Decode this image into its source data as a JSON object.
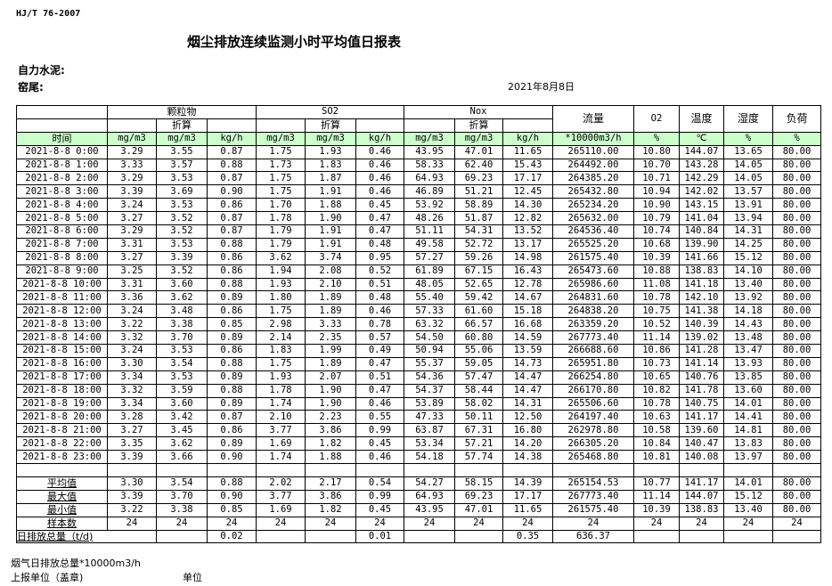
{
  "standard": "HJ/T  76-2007",
  "title": "烟尘排放连续监测小时平均值日报表",
  "company": "自力水泥:",
  "kiln": "窑尾:",
  "date": "2021年8月8日",
  "header": {
    "particulate": "颗粒物",
    "so2": "SO2",
    "nox": "Nox",
    "converted": "折算",
    "flow": "流量",
    "o2": "O2",
    "temperature": "温度",
    "humidity": "湿度",
    "load": "负荷",
    "time": "时间",
    "units": [
      "mg/m3",
      "mg/m3",
      "kg/h",
      "mg/m3",
      "mg/m3",
      "kg/h",
      "mg/m3",
      "mg/m3",
      "kg/h",
      "*10000m3/h",
      "%",
      "℃",
      "%",
      "%"
    ]
  },
  "rows": [
    [
      "2021-8-8 0:00",
      "3.29",
      "3.55",
      "0.87",
      "1.75",
      "1.93",
      "0.46",
      "43.95",
      "47.01",
      "11.65",
      "265110.00",
      "10.80",
      "144.07",
      "13.65",
      "80.00"
    ],
    [
      "2021-8-8 1:00",
      "3.33",
      "3.57",
      "0.88",
      "1.73",
      "1.83",
      "0.46",
      "58.33",
      "62.40",
      "15.43",
      "264492.00",
      "10.70",
      "143.28",
      "14.05",
      "80.00"
    ],
    [
      "2021-8-8 2:00",
      "3.29",
      "3.53",
      "0.87",
      "1.75",
      "1.87",
      "0.46",
      "64.93",
      "69.23",
      "17.17",
      "264385.20",
      "10.71",
      "142.29",
      "14.05",
      "80.00"
    ],
    [
      "2021-8-8 3:00",
      "3.39",
      "3.69",
      "0.90",
      "1.75",
      "1.91",
      "0.46",
      "46.89",
      "51.21",
      "12.45",
      "265432.80",
      "10.94",
      "142.02",
      "13.57",
      "80.00"
    ],
    [
      "2021-8-8 4:00",
      "3.24",
      "3.53",
      "0.86",
      "1.70",
      "1.88",
      "0.45",
      "53.92",
      "58.89",
      "14.30",
      "265234.20",
      "10.90",
      "143.15",
      "13.91",
      "80.00"
    ],
    [
      "2021-8-8 5:00",
      "3.27",
      "3.52",
      "0.87",
      "1.78",
      "1.90",
      "0.47",
      "48.26",
      "51.87",
      "12.82",
      "265632.00",
      "10.79",
      "141.04",
      "13.94",
      "80.00"
    ],
    [
      "2021-8-8 6:00",
      "3.29",
      "3.52",
      "0.87",
      "1.79",
      "1.91",
      "0.47",
      "51.11",
      "54.31",
      "13.52",
      "264536.40",
      "10.74",
      "140.84",
      "14.31",
      "80.00"
    ],
    [
      "2021-8-8 7:00",
      "3.31",
      "3.53",
      "0.88",
      "1.79",
      "1.91",
      "0.48",
      "49.58",
      "52.72",
      "13.17",
      "265525.20",
      "10.68",
      "139.90",
      "14.25",
      "80.00"
    ],
    [
      "2021-8-8 8:00",
      "3.27",
      "3.39",
      "0.86",
      "3.62",
      "3.74",
      "0.95",
      "57.27",
      "59.26",
      "14.98",
      "261575.40",
      "10.39",
      "141.66",
      "15.12",
      "80.00"
    ],
    [
      "2021-8-8 9:00",
      "3.25",
      "3.52",
      "0.86",
      "1.94",
      "2.08",
      "0.52",
      "61.89",
      "67.15",
      "16.43",
      "265473.60",
      "10.88",
      "138.83",
      "14.10",
      "80.00"
    ],
    [
      "2021-8-8 10:00",
      "3.31",
      "3.60",
      "0.88",
      "1.93",
      "2.10",
      "0.51",
      "48.05",
      "52.65",
      "12.78",
      "265986.60",
      "11.08",
      "141.18",
      "13.40",
      "80.00"
    ],
    [
      "2021-8-8 11:00",
      "3.36",
      "3.62",
      "0.89",
      "1.80",
      "1.89",
      "0.48",
      "55.40",
      "59.42",
      "14.67",
      "264831.60",
      "10.78",
      "142.10",
      "13.92",
      "80.00"
    ],
    [
      "2021-8-8 12:00",
      "3.24",
      "3.48",
      "0.86",
      "1.75",
      "1.89",
      "0.46",
      "57.33",
      "61.60",
      "15.18",
      "264838.20",
      "10.75",
      "141.38",
      "14.18",
      "80.00"
    ],
    [
      "2021-8-8 13:00",
      "3.22",
      "3.38",
      "0.85",
      "2.98",
      "3.33",
      "0.78",
      "63.32",
      "66.57",
      "16.68",
      "263359.20",
      "10.52",
      "140.39",
      "14.43",
      "80.00"
    ],
    [
      "2021-8-8 14:00",
      "3.32",
      "3.70",
      "0.89",
      "2.14",
      "2.35",
      "0.57",
      "54.50",
      "60.80",
      "14.59",
      "267773.40",
      "11.14",
      "139.02",
      "13.48",
      "80.00"
    ],
    [
      "2021-8-8 15:00",
      "3.24",
      "3.53",
      "0.86",
      "1.83",
      "1.99",
      "0.49",
      "50.94",
      "55.06",
      "13.59",
      "266688.60",
      "10.86",
      "141.28",
      "13.47",
      "80.00"
    ],
    [
      "2021-8-8 16:00",
      "3.30",
      "3.54",
      "0.88",
      "1.75",
      "1.89",
      "0.47",
      "55.37",
      "59.05",
      "14.73",
      "265951.80",
      "10.73",
      "141.14",
      "13.93",
      "80.00"
    ],
    [
      "2021-8-8 17:00",
      "3.34",
      "3.53",
      "0.89",
      "1.93",
      "2.07",
      "0.51",
      "54.36",
      "57.47",
      "14.47",
      "266254.80",
      "10.65",
      "140.76",
      "13.85",
      "80.00"
    ],
    [
      "2021-8-8 18:00",
      "3.32",
      "3.59",
      "0.88",
      "1.78",
      "1.90",
      "0.47",
      "54.37",
      "58.44",
      "14.47",
      "266170.80",
      "10.82",
      "141.78",
      "13.60",
      "80.00"
    ],
    [
      "2021-8-8 19:00",
      "3.34",
      "3.60",
      "0.89",
      "1.74",
      "1.90",
      "0.46",
      "53.89",
      "58.02",
      "14.31",
      "265506.60",
      "10.78",
      "140.75",
      "14.01",
      "80.00"
    ],
    [
      "2021-8-8 20:00",
      "3.28",
      "3.42",
      "0.87",
      "2.10",
      "2.23",
      "0.55",
      "47.33",
      "50.11",
      "12.50",
      "264197.40",
      "10.63",
      "141.17",
      "14.41",
      "80.00"
    ],
    [
      "2021-8-8 21:00",
      "3.27",
      "3.45",
      "0.86",
      "3.77",
      "3.86",
      "0.99",
      "63.87",
      "67.31",
      "16.80",
      "262978.80",
      "10.58",
      "139.60",
      "14.81",
      "80.00"
    ],
    [
      "2021-8-8 22:00",
      "3.35",
      "3.62",
      "0.89",
      "1.69",
      "1.82",
      "0.45",
      "53.34",
      "57.21",
      "14.20",
      "266305.20",
      "10.84",
      "140.47",
      "13.83",
      "80.00"
    ],
    [
      "2021-8-8 23:00",
      "3.39",
      "3.66",
      "0.90",
      "1.74",
      "1.88",
      "0.46",
      "54.18",
      "57.74",
      "14.38",
      "265468.80",
      "10.81",
      "140.08",
      "13.97",
      "80.00"
    ]
  ],
  "summary": [
    [
      "平均值",
      "3.30",
      "3.54",
      "0.88",
      "2.02",
      "2.17",
      "0.54",
      "54.27",
      "58.15",
      "14.39",
      "265154.53",
      "10.77",
      "141.17",
      "14.01",
      "80.00"
    ],
    [
      "最大值",
      "3.39",
      "3.70",
      "0.90",
      "3.77",
      "3.86",
      "0.99",
      "64.93",
      "69.23",
      "17.17",
      "267773.40",
      "11.14",
      "144.07",
      "15.12",
      "80.00"
    ],
    [
      "最小值",
      "3.22",
      "3.38",
      "0.85",
      "1.69",
      "1.82",
      "0.45",
      "43.95",
      "47.01",
      "11.65",
      "261575.40",
      "10.39",
      "138.83",
      "13.40",
      "80.00"
    ],
    [
      "样本数",
      "24",
      "24",
      "24",
      "24",
      "24",
      "24",
      "24",
      "24",
      "24",
      "24",
      "24",
      "24",
      "24",
      "24"
    ]
  ],
  "daily_total": {
    "label": "日排放总量（t/d)",
    "values": [
      "",
      "0.02",
      "",
      "",
      "0.01",
      "",
      "",
      "0.35",
      "636.37",
      "",
      "",
      "",
      ""
    ]
  },
  "footer": {
    "flue_total": "烟气日排放总量*10000m3/h",
    "reporting_unit": "上报单位（盖章)",
    "unit": "单位"
  }
}
